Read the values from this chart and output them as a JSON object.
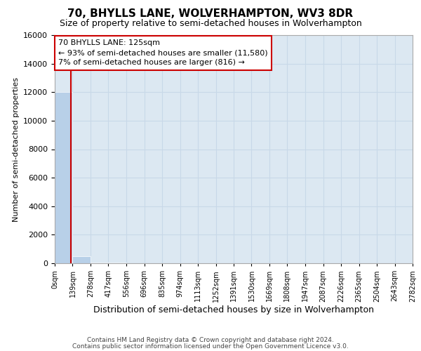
{
  "title": "70, BHYLLS LANE, WOLVERHAMPTON, WV3 8DR",
  "subtitle": "Size of property relative to semi-detached houses in Wolverhampton",
  "xlabel": "Distribution of semi-detached houses by size in Wolverhampton",
  "ylabel": "Number of semi-detached properties",
  "footer1": "Contains HM Land Registry data © Crown copyright and database right 2024.",
  "footer2": "Contains public sector information licensed under the Open Government Licence v3.0.",
  "annotation_title": "70 BHYLLS LANE: 125sqm",
  "annotation_line1": "← 93% of semi-detached houses are smaller (11,580)",
  "annotation_line2": "7% of semi-detached houses are larger (816) →",
  "property_size": 125,
  "bin_edges": [
    0,
    139,
    278,
    417,
    556,
    696,
    835,
    974,
    1113,
    1252,
    1391,
    1530,
    1669,
    1808,
    1947,
    2087,
    2226,
    2365,
    2504,
    2643,
    2782
  ],
  "bar_heights": [
    12000,
    500,
    60,
    30,
    15,
    10,
    8,
    5,
    4,
    3,
    2,
    2,
    1,
    1,
    1,
    1,
    0,
    0,
    0,
    0
  ],
  "tick_labels": [
    "0sqm",
    "139sqm",
    "278sqm",
    "417sqm",
    "556sqm",
    "696sqm",
    "835sqm",
    "974sqm",
    "1113sqm",
    "1252sqm",
    "1391sqm",
    "1530sqm",
    "1669sqm",
    "1808sqm",
    "1947sqm",
    "2087sqm",
    "2226sqm",
    "2365sqm",
    "2504sqm",
    "2643sqm",
    "2782sqm"
  ],
  "ylim": [
    0,
    16000
  ],
  "bar_color": "#b8d0e8",
  "grid_color": "#c8d8e8",
  "background_color": "#dce8f2",
  "property_line_color": "#cc0000",
  "annotation_box_color": "#cc0000",
  "yticks": [
    0,
    2000,
    4000,
    6000,
    8000,
    10000,
    12000,
    14000,
    16000
  ],
  "title_fontsize": 11,
  "subtitle_fontsize": 9,
  "ylabel_fontsize": 8,
  "xlabel_fontsize": 9,
  "ytick_fontsize": 8,
  "xtick_fontsize": 7,
  "annotation_fontsize": 8,
  "footer_fontsize": 6.5
}
